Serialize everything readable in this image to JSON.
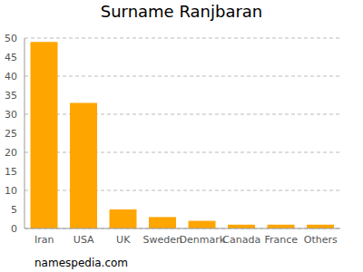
{
  "chart_data": {
    "type": "bar",
    "title": "Surname Ranjbaran",
    "categories": [
      "Iran",
      "USA",
      "UK",
      "Sweden",
      "Denmark",
      "Canada",
      "France",
      "Others"
    ],
    "values": [
      49,
      33,
      5,
      3,
      2,
      1,
      1,
      1
    ],
    "color": "#ffa500",
    "ylim": [
      0,
      50
    ],
    "yticks": [
      0,
      5,
      10,
      15,
      20,
      25,
      30,
      35,
      40,
      45,
      50
    ],
    "grid": true,
    "annotations": [
      "namespedia.com"
    ]
  }
}
